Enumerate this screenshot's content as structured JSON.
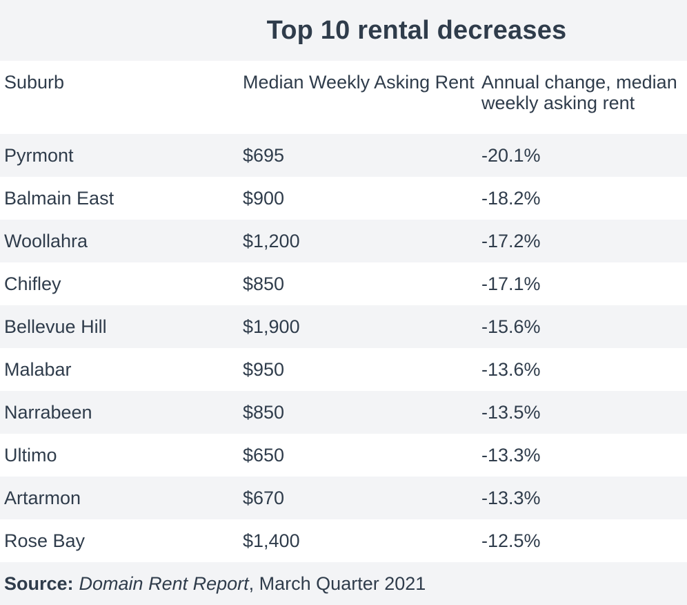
{
  "chart_data": {
    "type": "table",
    "title": "Top 10 rental decreases",
    "columns": [
      "Suburb",
      "Median Weekly Asking Rent",
      "Annual change, median weekly asking rent"
    ],
    "rows": [
      [
        "Pyrmont",
        "$695",
        "-20.1%"
      ],
      [
        "Balmain East",
        "$900",
        "-18.2%"
      ],
      [
        "Woollahra",
        "$1,200",
        "-17.2%"
      ],
      [
        "Chifley",
        "$850",
        "-17.1%"
      ],
      [
        "Bellevue Hill",
        "$1,900",
        "-15.6%"
      ],
      [
        "Malabar",
        "$950",
        "-13.6%"
      ],
      [
        "Narrabeen",
        "$850",
        "-13.5%"
      ],
      [
        "Ultimo",
        "$650",
        "-13.3%"
      ],
      [
        "Artarmon",
        "$670",
        "-13.3%"
      ],
      [
        "Rose Bay",
        "$1,400",
        "-12.5%"
      ]
    ]
  },
  "source": {
    "label": "Source:",
    "publication": "Domain Rent Report",
    "detail": ", March Quarter 2021"
  },
  "colors": {
    "text": "#2f3c4b",
    "band": "#f3f4f6",
    "white": "#ffffff"
  }
}
